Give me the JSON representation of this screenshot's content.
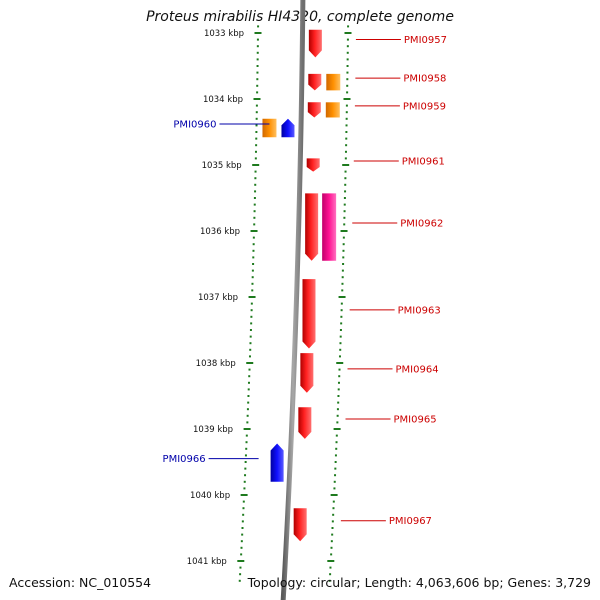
{
  "title": "Proteus mirabilis HI4320, complete genome",
  "accession": "Accession: NC_010554",
  "summary": "Topology: circular; Length: 4,063,606 bp; Genes: 3,729",
  "colors": {
    "background": "#ffffff",
    "backbone": "#8c8c8c",
    "tick": "#1e7a1e",
    "forward_cds": "#ff0000",
    "reverse_cds": "#0000ee",
    "orange_feature": "#ff8c00",
    "pink_feature": "#ff1493",
    "forward_label": "#cc0000",
    "reverse_label": "#0000aa"
  },
  "scale": {
    "unit": "kbp",
    "labels": [
      {
        "kbp": 1033,
        "text": "1033 kbp"
      },
      {
        "kbp": 1034,
        "text": "1034 kbp"
      },
      {
        "kbp": 1035,
        "text": "1035 kbp"
      },
      {
        "kbp": 1036,
        "text": "1036 kbp"
      },
      {
        "kbp": 1037,
        "text": "1037 kbp"
      },
      {
        "kbp": 1038,
        "text": "1038 kbp"
      },
      {
        "kbp": 1039,
        "text": "1039 kbp"
      },
      {
        "kbp": 1040,
        "text": "1040 kbp"
      },
      {
        "kbp": 1041,
        "text": "1041 kbp"
      }
    ]
  },
  "features": [
    {
      "strand": "forward",
      "kind": "cds",
      "label": "PMI0957",
      "start_kbp": 1032.95,
      "end_kbp": 1033.37
    },
    {
      "strand": "forward",
      "kind": "cds",
      "label": "PMI0958",
      "start_kbp": 1033.62,
      "end_kbp": 1033.87
    },
    {
      "strand": "forward",
      "kind": "orange",
      "label": "",
      "start_kbp": 1033.62,
      "end_kbp": 1033.87
    },
    {
      "strand": "forward",
      "kind": "cds",
      "label": "PMI0959",
      "start_kbp": 1034.05,
      "end_kbp": 1034.28
    },
    {
      "strand": "forward",
      "kind": "orange",
      "label": "",
      "start_kbp": 1034.05,
      "end_kbp": 1034.28
    },
    {
      "strand": "reverse",
      "kind": "orange",
      "label": "",
      "start_kbp": 1034.3,
      "end_kbp": 1034.58
    },
    {
      "strand": "reverse",
      "kind": "cds",
      "label": "PMI0960",
      "start_kbp": 1034.3,
      "end_kbp": 1034.58
    },
    {
      "strand": "forward",
      "kind": "cds",
      "label": "PMI0961",
      "start_kbp": 1034.9,
      "end_kbp": 1035.1
    },
    {
      "strand": "forward",
      "kind": "cds",
      "label": "PMI0962",
      "start_kbp": 1035.43,
      "end_kbp": 1036.45
    },
    {
      "strand": "forward",
      "kind": "pink",
      "label": "",
      "start_kbp": 1035.43,
      "end_kbp": 1036.45
    },
    {
      "strand": "forward",
      "kind": "cds",
      "label": "PMI0963",
      "start_kbp": 1036.73,
      "end_kbp": 1037.78
    },
    {
      "strand": "forward",
      "kind": "cds",
      "label": "PMI0964",
      "start_kbp": 1037.85,
      "end_kbp": 1038.45
    },
    {
      "strand": "forward",
      "kind": "cds",
      "label": "PMI0965",
      "start_kbp": 1038.67,
      "end_kbp": 1039.15
    },
    {
      "strand": "reverse",
      "kind": "cds",
      "label": "PMI0966",
      "start_kbp": 1039.22,
      "end_kbp": 1039.8
    },
    {
      "strand": "forward",
      "kind": "cds",
      "label": "PMI0967",
      "start_kbp": 1040.2,
      "end_kbp": 1040.7
    }
  ]
}
